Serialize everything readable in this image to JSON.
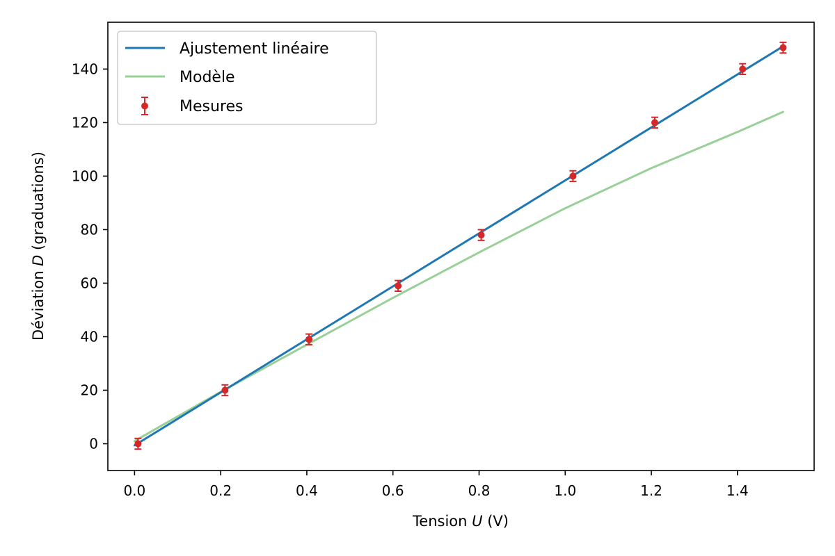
{
  "chart_data": {
    "type": "line",
    "title": "",
    "xlabel": {
      "prefix": "Tension ",
      "symbol": "U",
      "suffix": " (V)"
    },
    "ylabel": {
      "prefix": "Déviation ",
      "symbol": "D",
      "suffix": " (graduations)"
    },
    "xlim": [
      -0.062,
      1.578
    ],
    "ylim": [
      -10,
      157.5
    ],
    "xticks": [
      0.0,
      0.2,
      0.4,
      0.6,
      0.8,
      1.0,
      1.2,
      1.4
    ],
    "xtick_labels": [
      "0.0",
      "0.2",
      "0.4",
      "0.6",
      "0.8",
      "1.0",
      "1.2",
      "1.4"
    ],
    "yticks": [
      0,
      20,
      40,
      60,
      80,
      100,
      120,
      140
    ],
    "ytick_labels": [
      "0",
      "20",
      "40",
      "60",
      "80",
      "100",
      "120",
      "140"
    ],
    "grid": false,
    "legend_position": "top-left",
    "series": [
      {
        "name": "Ajustement linéaire",
        "kind": "line",
        "color": "#1f77b4",
        "x": [
          0.0,
          1.506
        ],
        "y": [
          -0.6,
          148.5
        ]
      },
      {
        "name": "Modèle",
        "kind": "line",
        "color": "#98d098",
        "x": [
          0.0,
          0.2,
          0.4,
          0.6,
          0.8,
          1.0,
          1.2,
          1.4,
          1.506
        ],
        "y": [
          1.0,
          19.4,
          37.0,
          54.5,
          71.5,
          88.0,
          103.0,
          116.5,
          124.0
        ]
      },
      {
        "name": "Mesures",
        "kind": "errorbar",
        "color": "#d62728",
        "x": [
          0.008,
          0.21,
          0.405,
          0.612,
          0.805,
          1.018,
          1.208,
          1.412,
          1.506
        ],
        "y": [
          0,
          20,
          39,
          59,
          78,
          100,
          120,
          140,
          148
        ],
        "yerr": [
          2,
          2,
          2,
          2,
          2,
          2,
          2,
          2,
          2
        ]
      }
    ]
  }
}
